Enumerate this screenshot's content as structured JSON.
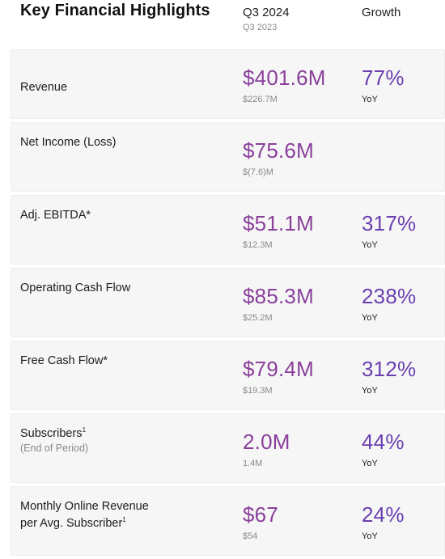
{
  "header": {
    "title": "Key Financial Highlights",
    "period_label": "Q3 2024",
    "prior_label": "Q3 2023",
    "growth_label": "Growth"
  },
  "rows": [
    {
      "label": "Revenue",
      "value": "$401.6M",
      "prior": "$226.7M",
      "growth": "77%",
      "growth_unit": "YoY"
    },
    {
      "label": "Net Income (Loss)",
      "value": "$75.6M",
      "prior": "$(7.6)M",
      "growth": "",
      "growth_unit": ""
    },
    {
      "label": "Adj. EBITDA*",
      "value": "$51.1M",
      "prior": "$12.3M",
      "growth": "317%",
      "growth_unit": "YoY"
    },
    {
      "label": "Operating Cash Flow",
      "value": "$85.3M",
      "prior": "$25.2M",
      "growth": "238%",
      "growth_unit": "YoY"
    },
    {
      "label": "Free Cash Flow*",
      "value": "$79.4M",
      "prior": "$19.3M",
      "growth": "312%",
      "growth_unit": "YoY"
    },
    {
      "label": "Subscribers",
      "footnote": "1",
      "sublabel": "(End of Period)",
      "value": "2.0M",
      "prior": "1.4M",
      "growth": "44%",
      "growth_unit": "YoY"
    },
    {
      "label_line1": "Monthly Online Revenue",
      "label_line2": "per Avg. Subscriber",
      "footnote": "1",
      "value": "$67",
      "prior": "$54",
      "growth": "24%",
      "growth_unit": "YoY"
    }
  ],
  "colors": {
    "value_purple": "#8a3f9b",
    "growth_purple": "#6a3fb0",
    "row_background": "#f6f6f6"
  }
}
